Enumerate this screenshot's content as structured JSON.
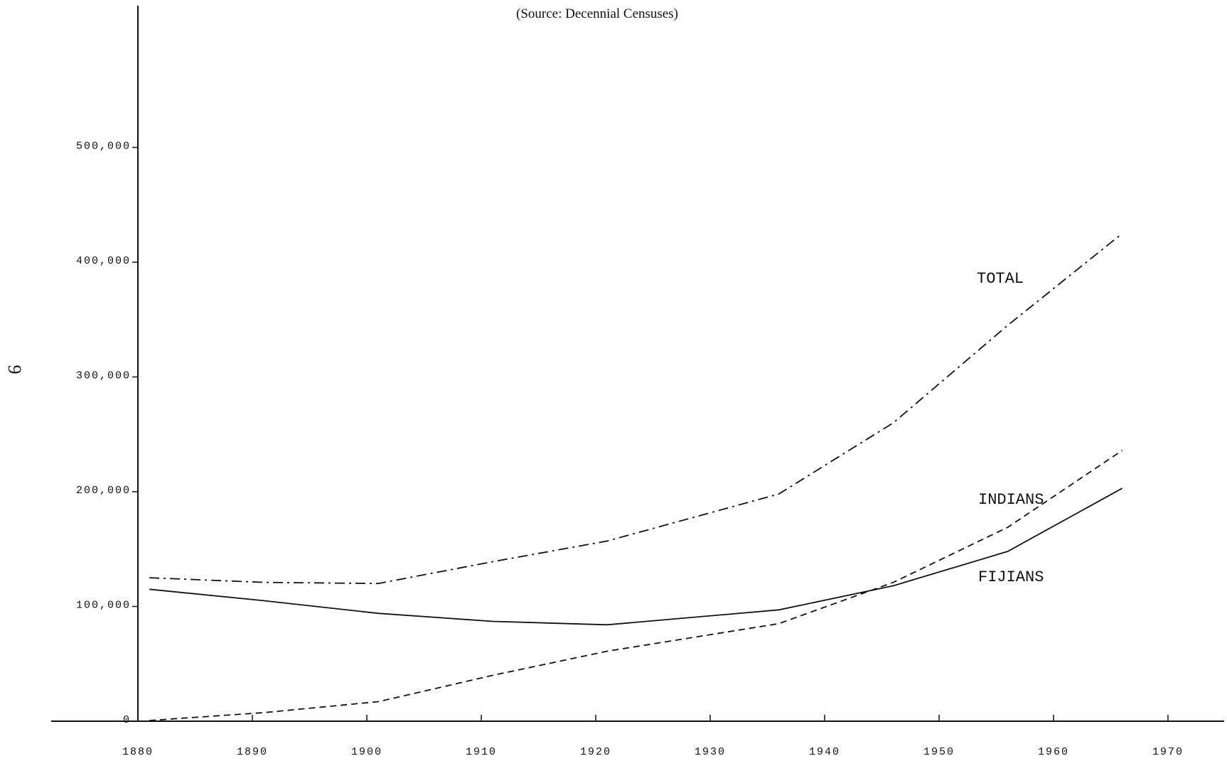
{
  "source_note": "(Source: Decennial Censuses)",
  "page_number": "9",
  "chart_data": {
    "type": "line",
    "title": "",
    "xlabel": "",
    "ylabel": "",
    "xlim": [
      1880,
      1970
    ],
    "ylim": [
      0,
      500000
    ],
    "x_ticks": [
      1880,
      1890,
      1900,
      1910,
      1920,
      1930,
      1940,
      1950,
      1960,
      1970
    ],
    "x_tick_labels": [
      "1880",
      "1890",
      "1900",
      "1910",
      "1920",
      "1930",
      "1940",
      "1950",
      "1960",
      "1970"
    ],
    "y_ticks": [
      0,
      100000,
      200000,
      300000,
      400000,
      500000
    ],
    "y_tick_labels": [
      "0",
      "100,000",
      "200,000",
      "300,000",
      "400,000",
      "500,000"
    ],
    "grid": false,
    "legend": "none (series labelled directly on the plot)",
    "series": [
      {
        "name": "TOTAL",
        "line_style": "dash-dot",
        "x": [
          1881,
          1891,
          1901,
          1911,
          1921,
          1936,
          1946,
          1956,
          1966
        ],
        "y": [
          125000,
          121000,
          120000,
          139000,
          157000,
          198000,
          260000,
          345000,
          425000
        ]
      },
      {
        "name": "INDIANS",
        "line_style": "dashed",
        "x": [
          1881,
          1891,
          1901,
          1911,
          1921,
          1936,
          1946,
          1956,
          1966
        ],
        "y": [
          600,
          7500,
          17000,
          40000,
          61000,
          85000,
          121000,
          169000,
          236000
        ]
      },
      {
        "name": "FIJIANS",
        "line_style": "solid",
        "x": [
          1881,
          1891,
          1901,
          1911,
          1921,
          1936,
          1946,
          1956,
          1966
        ],
        "y": [
          115000,
          105000,
          94000,
          87000,
          84000,
          97000,
          118000,
          148000,
          203000
        ]
      }
    ]
  }
}
